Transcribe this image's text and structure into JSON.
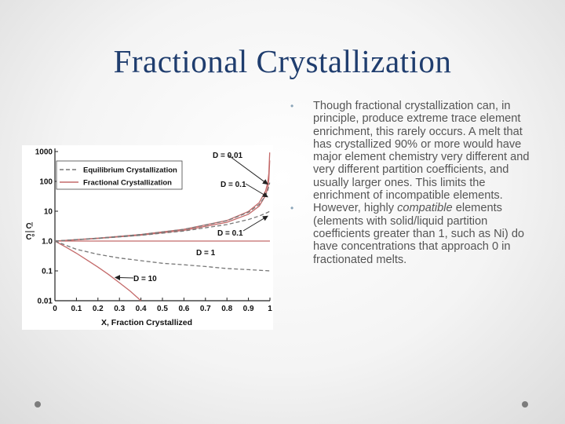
{
  "slide": {
    "title": "Fractional Crystallization",
    "bullets": [
      {
        "text": "Though fractional crystallization can, in principle, produce extreme trace element enrichment, this rarely occurs. A melt that has crystallized 90% or more would have major element chemistry very different and very different partition coefficients, and usually larger ones. This limits the enrichment of incompatible elements."
      },
      {
        "prefix": "However, highly ",
        "emph": "compatible",
        "suffix": " elements (elements with solid/liquid partition coefficients greater than 1, such as Ni) do have concentrations that approach 0 in fractionated melts."
      }
    ]
  },
  "chart_data": {
    "type": "line",
    "xlabel": "X, Fraction Crystallized",
    "ylabel_num": "Cˡ",
    "ylabel_den": "C°",
    "xlim": [
      0,
      1
    ],
    "ylim": [
      0.01,
      1000
    ],
    "yscale": "log",
    "xticks": [
      "0",
      "0.1",
      "0.2",
      "0.3",
      "0.4",
      "0.5",
      "0.6",
      "0.7",
      "0.8",
      "0.9",
      "1"
    ],
    "yticks": [
      "0.01",
      "0.1",
      "1.0",
      "10",
      "100",
      "1000"
    ],
    "legend": {
      "placement": "top-left",
      "entries": [
        "Equilibrium Crystallization",
        "Fractional Crystallization"
      ]
    },
    "series_colors": {
      "equilibrium": "#777777",
      "fractional": "#c46a6a"
    },
    "annotations": [
      {
        "label": "D = 0.01",
        "target_x": 0.99,
        "target_y": 80
      },
      {
        "label": "D = 0.1",
        "target_x": 0.99,
        "target_y": 30
      },
      {
        "label": "D = 0.1",
        "target_x": 0.99,
        "target_y": 6.9
      },
      {
        "label": "D = 1",
        "target_x": null,
        "target_y": null
      },
      {
        "label": "D = 10",
        "target_x": 0.28,
        "target_y": 0.06
      }
    ],
    "series": [
      {
        "group": "fractional",
        "D": 0.01,
        "x": [
          0,
          0.2,
          0.4,
          0.6,
          0.8,
          0.9,
          0.95,
          0.98,
          0.99,
          0.995,
          0.999
        ],
        "y": [
          1,
          1.25,
          1.66,
          2.48,
          4.9,
          9.8,
          19.4,
          48,
          95,
          190,
          930
        ]
      },
      {
        "group": "fractional",
        "D": 0.1,
        "x": [
          0,
          0.2,
          0.4,
          0.6,
          0.8,
          0.9,
          0.95,
          0.98,
          0.99,
          0.995,
          0.999
        ],
        "y": [
          1,
          1.22,
          1.58,
          2.28,
          4.26,
          7.94,
          14.8,
          33.8,
          63,
          118,
          500
        ]
      },
      {
        "group": "fractional",
        "D": 1,
        "x": [
          0,
          1
        ],
        "y": [
          1,
          1
        ]
      },
      {
        "group": "fractional",
        "D": 10,
        "x": [
          0,
          0.05,
          0.1,
          0.15,
          0.2,
          0.25,
          0.3,
          0.35,
          0.4
        ],
        "y": [
          1,
          0.63,
          0.39,
          0.23,
          0.134,
          0.075,
          0.04,
          0.021,
          0.01
        ]
      },
      {
        "group": "equilibrium",
        "D": 0.01,
        "x": [
          0,
          0.2,
          0.4,
          0.6,
          0.8,
          0.9,
          0.95,
          0.98,
          0.99,
          0.999
        ],
        "y": [
          1,
          1.25,
          1.66,
          2.46,
          4.81,
          9.17,
          16.8,
          33.6,
          50.3,
          91
        ]
      },
      {
        "group": "equilibrium",
        "D": 0.1,
        "x": [
          0,
          0.2,
          0.4,
          0.6,
          0.8,
          0.9,
          0.95,
          0.98,
          0.99,
          0.999
        ],
        "y": [
          1,
          1.22,
          1.56,
          2.17,
          3.57,
          5.26,
          6.9,
          8.47,
          9.17,
          9.91
        ]
      },
      {
        "group": "equilibrium",
        "D": 10,
        "x": [
          0,
          0.1,
          0.2,
          0.3,
          0.4,
          0.5,
          0.6,
          0.7,
          0.8,
          0.9,
          1
        ],
        "y": [
          1,
          0.53,
          0.36,
          0.27,
          0.22,
          0.18,
          0.16,
          0.14,
          0.12,
          0.11,
          0.1
        ]
      }
    ]
  }
}
